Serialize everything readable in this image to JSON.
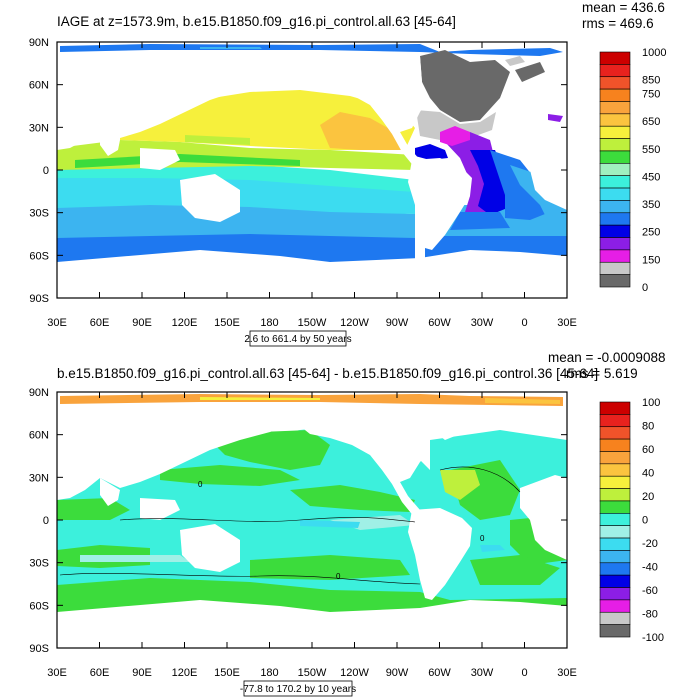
{
  "chart_data": [
    {
      "type": "heatmap",
      "title": "IAGE at z=1573.9m, b.e15.B1850.f09_g16.pi_control.all.63 [45-64]",
      "stats": {
        "mean": "mean = 436.6",
        "rms": "rms = 469.6"
      },
      "contour_info": "2.6 to 661.4 by 50 years",
      "x_ticks": [
        "30E",
        "60E",
        "90E",
        "120E",
        "150E",
        "180",
        "150W",
        "120W",
        "90W",
        "60W",
        "30W",
        "0",
        "30E"
      ],
      "y_ticks": [
        "90N",
        "60N",
        "30N",
        "0",
        "30S",
        "60S",
        "90S"
      ],
      "xlim": [
        30,
        390
      ],
      "ylim": [
        -90,
        90
      ],
      "colorbar": {
        "labels": [
          "1000",
          "",
          "850",
          "750",
          "",
          "650",
          "",
          "550",
          "",
          "450",
          "",
          "350",
          "",
          "250",
          "",
          "150",
          "",
          "0"
        ],
        "colors": [
          "#cc0000",
          "#e8221e",
          "#f0532a",
          "#f7821e",
          "#f9a33c",
          "#fbc43f",
          "#f6f03c",
          "#bef03c",
          "#3cdc3c",
          "#a0f0c0",
          "#3cf0dc",
          "#3cdcf0",
          "#3cb4f0",
          "#1e78f0",
          "#0000e6",
          "#8c1ee6",
          "#e61ee6",
          "#c8c8c8",
          "#696969"
        ]
      },
      "regions": [
        {
          "name": "arctic-band",
          "lat": [
            80,
            86
          ],
          "lon": [
            40,
            385
          ],
          "color": "#1e78f0"
        },
        {
          "name": "north-pacific",
          "lat": [
            10,
            45
          ],
          "lon": [
            110,
            270
          ],
          "color": "#f6f03c"
        },
        {
          "name": "equatorial-band",
          "lat": [
            -5,
            10
          ],
          "lon": [
            40,
            275
          ],
          "color": "#bef03c"
        },
        {
          "name": "south-indo-pacific",
          "lat": [
            -30,
            -5
          ],
          "lon": [
            40,
            280
          ],
          "color": "#3cf0dc"
        },
        {
          "name": "southern-ocean",
          "lat": [
            -60,
            -30
          ],
          "lon": [
            40,
            385
          ],
          "color": "#3cb4f0"
        },
        {
          "name": "north-atlantic",
          "lat": [
            40,
            70
          ],
          "lon": [
            300,
            340
          ],
          "color": "#696969"
        },
        {
          "name": "deep-western-atlantic",
          "lat": [
            -30,
            20
          ],
          "lon": [
            325,
            345
          ],
          "color": "#8c1ee6"
        }
      ]
    },
    {
      "type": "heatmap",
      "title": "b.e15.B1850.f09_g16.pi_control.all.63 [45-64] - b.e15.B1850.f09_g16.pi_control.36 [45-64]",
      "stats": {
        "mean": "mean = -0.0009088",
        "rms": "rms = 5.619"
      },
      "contour_info": "-77.8 to 170.2 by 10 years",
      "x_ticks": [
        "30E",
        "60E",
        "90E",
        "120E",
        "150E",
        "180",
        "150W",
        "120W",
        "90W",
        "60W",
        "30W",
        "0",
        "30E"
      ],
      "y_ticks": [
        "90N",
        "60N",
        "30N",
        "0",
        "30S",
        "60S",
        "90S"
      ],
      "xlim": [
        30,
        390
      ],
      "ylim": [
        -90,
        90
      ],
      "colorbar": {
        "labels": [
          "100",
          "80",
          "60",
          "40",
          "20",
          "0",
          "-20",
          "-40",
          "-60",
          "-80",
          "-100"
        ],
        "colors": [
          "#cc0000",
          "#e8221e",
          "#f0532a",
          "#f7821e",
          "#f9a33c",
          "#fbc43f",
          "#f6f03c",
          "#bef03c",
          "#3cdc3c",
          "#3cf0dc",
          "#a0f0e6",
          "#3cdcf0",
          "#3cb4f0",
          "#1e78f0",
          "#0000e6",
          "#8c1ee6",
          "#e61ee6",
          "#c8c8c8",
          "#696969"
        ]
      },
      "regions": [
        {
          "name": "arctic-band",
          "lat": [
            80,
            86
          ],
          "lon": [
            40,
            385
          ],
          "color": "#f9a33c"
        },
        {
          "name": "equatorial-pacific",
          "lat": [
            -10,
            10
          ],
          "lon": [
            150,
            270
          ],
          "color": "#3cdc3c"
        },
        {
          "name": "southern-ocean",
          "lat": [
            -65,
            -40
          ],
          "lon": [
            40,
            385
          ],
          "color": "#3cdc3c"
        }
      ]
    }
  ]
}
